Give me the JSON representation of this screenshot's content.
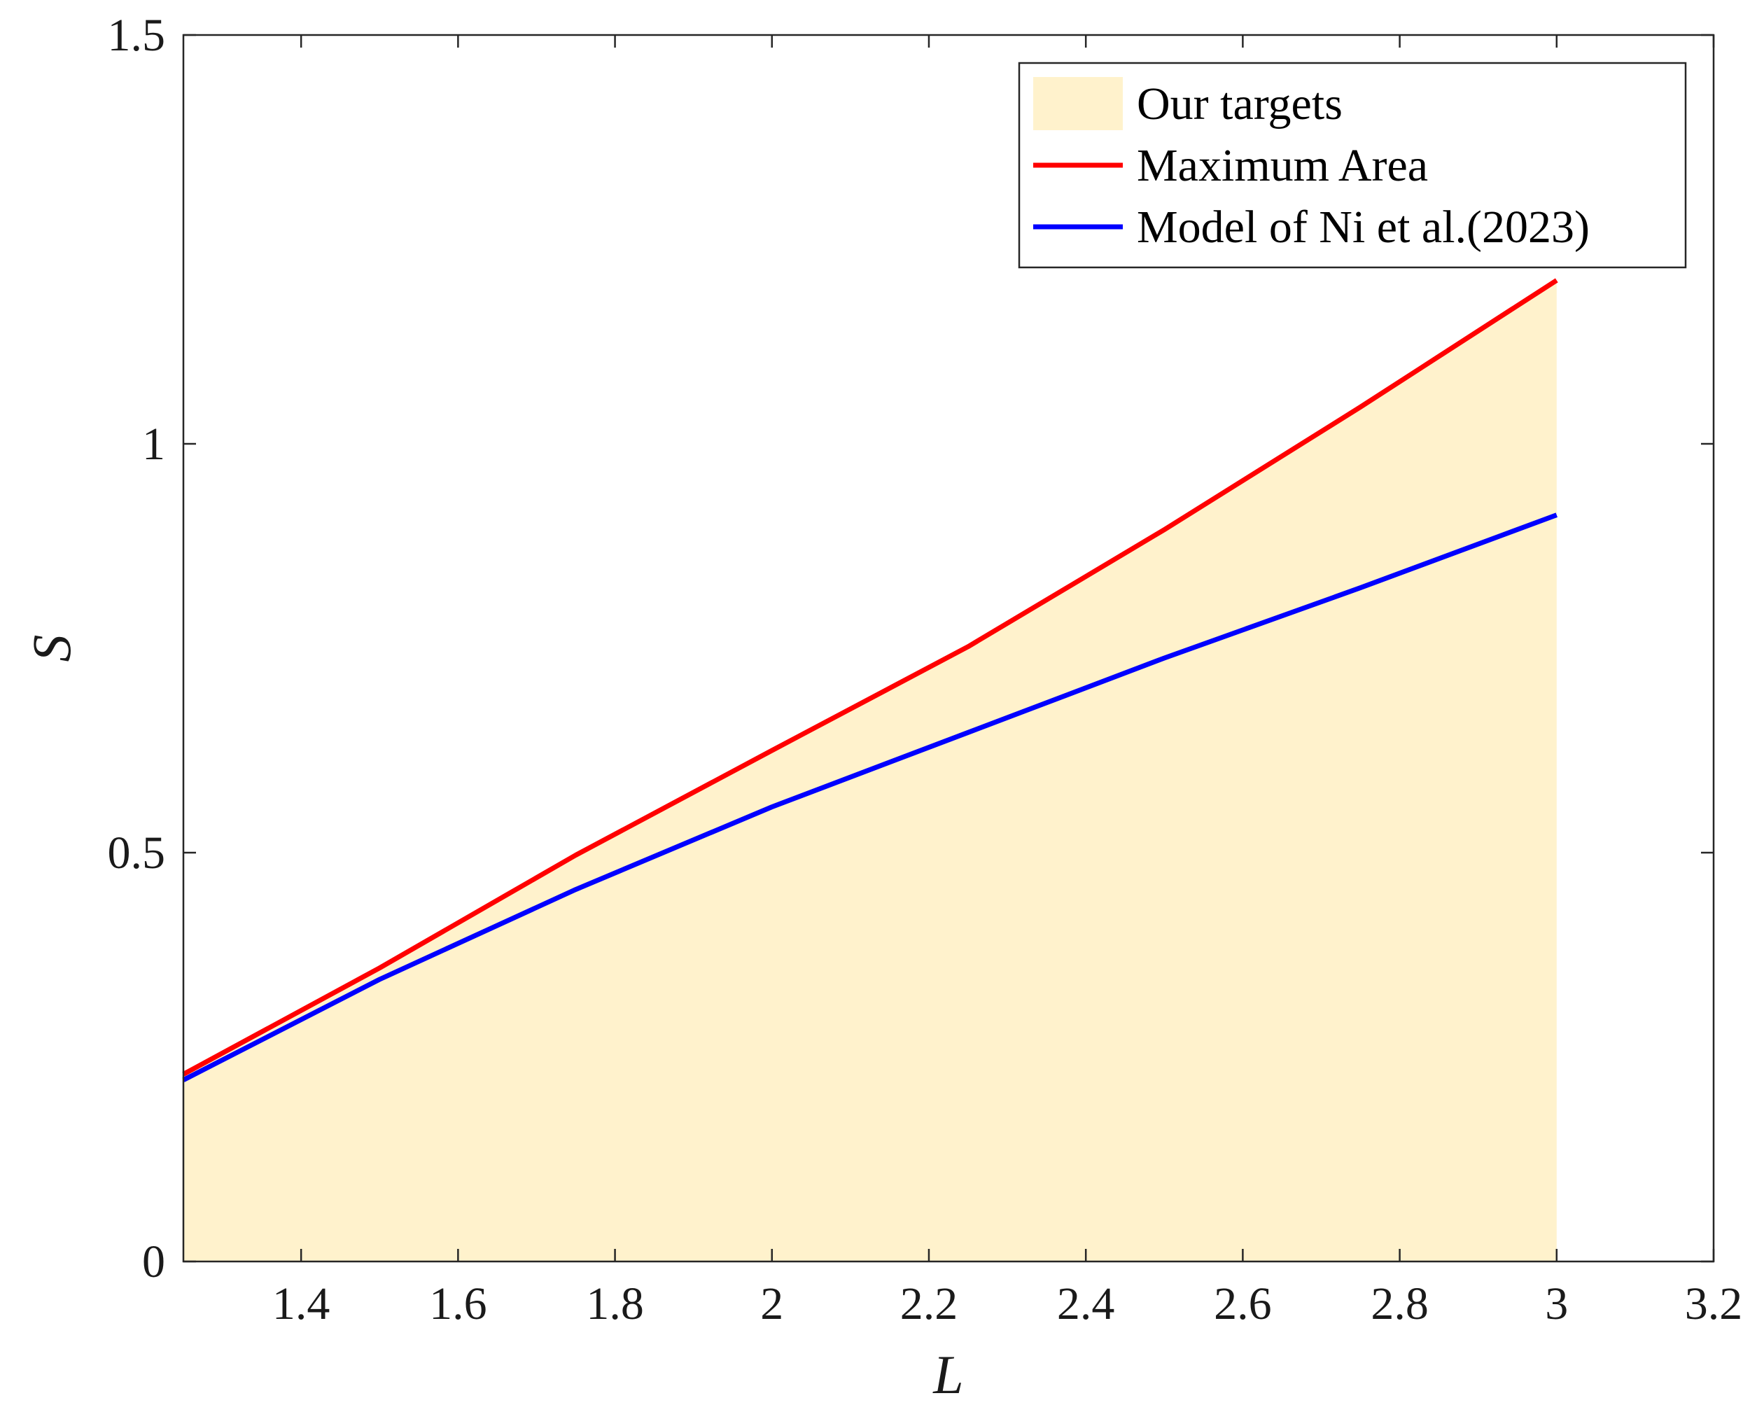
{
  "chart_data": {
    "type": "line",
    "xlabel": "L",
    "ylabel": "S",
    "xlim": [
      1.25,
      3.2
    ],
    "ylim": [
      0,
      1.5
    ],
    "xticks": [
      1.4,
      1.6,
      1.8,
      2,
      2.2,
      2.4,
      2.6,
      2.8,
      3,
      3.2
    ],
    "xtick_labels": [
      "1.4",
      "1.6",
      "1.8",
      "2",
      "2.2",
      "2.4",
      "2.6",
      "2.8",
      "3",
      "3.2"
    ],
    "yticks": [
      0,
      0.5,
      1,
      1.5
    ],
    "ytick_labels": [
      "0",
      "0.5",
      "1",
      "1.5"
    ],
    "grid": false,
    "legend_position": "top-right",
    "legend": [
      "Our targets",
      "Maximum Area",
      "Model of Ni et al.(2023)"
    ],
    "series": [
      {
        "name": "Our targets",
        "type": "area",
        "color": "#FFF2CC",
        "x": [
          1.25,
          1.5,
          1.75,
          2.0,
          2.25,
          2.5,
          2.75,
          3.0
        ],
        "values": [
          0.229,
          0.359,
          0.497,
          0.625,
          0.752,
          0.895,
          1.045,
          1.2
        ]
      },
      {
        "name": "Maximum Area",
        "type": "line",
        "color": "#FF0000",
        "x": [
          1.25,
          1.5,
          1.75,
          2.0,
          2.25,
          2.5,
          2.75,
          3.0
        ],
        "values": [
          0.229,
          0.359,
          0.497,
          0.625,
          0.752,
          0.895,
          1.045,
          1.2
        ]
      },
      {
        "name": "Model of Ni et al.(2023)",
        "type": "line",
        "color": "#0000FF",
        "x": [
          1.25,
          1.5,
          1.75,
          2.0,
          2.25,
          2.5,
          2.75,
          3.0
        ],
        "values": [
          0.222,
          0.345,
          0.455,
          0.556,
          0.647,
          0.738,
          0.824,
          0.913
        ]
      }
    ]
  }
}
